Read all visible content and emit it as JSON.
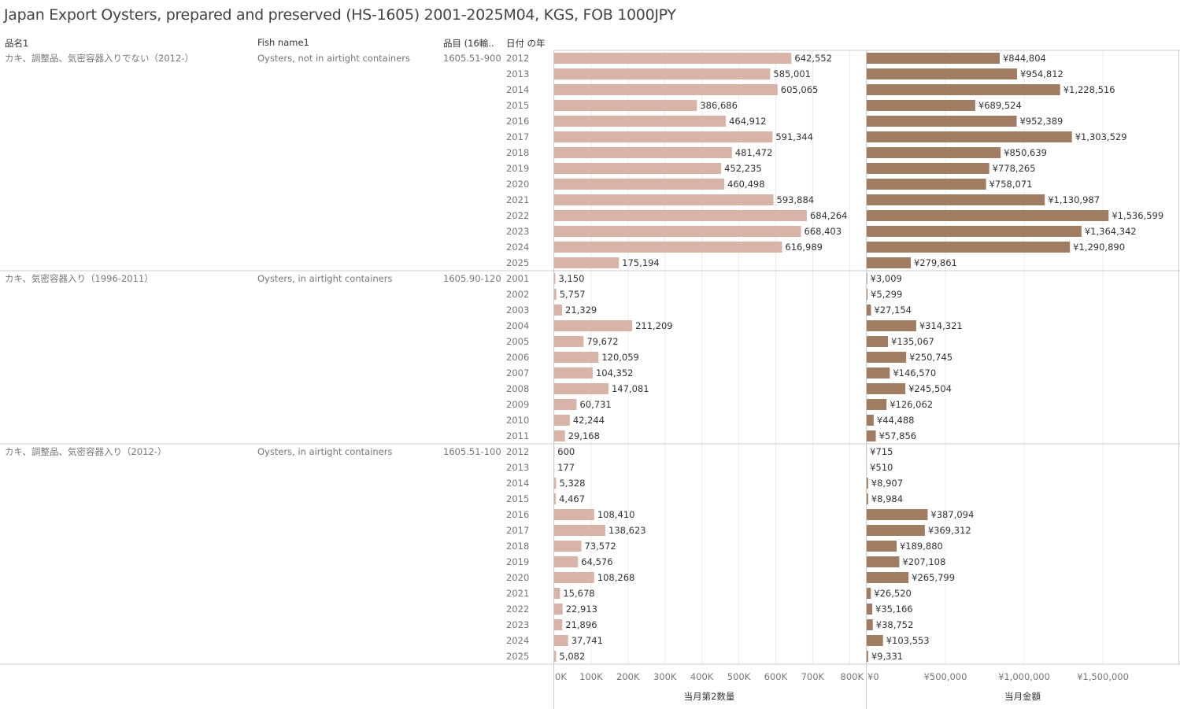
{
  "title": "Japan Export Oysters, prepared and preserved (HS-1605) 2001-2025M04, KGS, FOB 1000JPY",
  "headers": {
    "name": "品名1",
    "fish": "Fish name1",
    "code": "品目 (16輸..",
    "year": "日付 の年"
  },
  "colors": {
    "qty_bar": "#d8b4a8",
    "value_bar": "#a27b63",
    "grid": "#ececec",
    "divider": "#cccccc"
  },
  "axis": {
    "qty_title": "当月第2数量",
    "value_title": "当月金額",
    "qty_ticks": [
      "0K",
      "100K",
      "200K",
      "300K",
      "400K",
      "500K",
      "600K",
      "700K",
      "800K"
    ],
    "value_ticks": [
      "¥0",
      "¥500,000",
      "¥1,000,000",
      "¥1,500,000"
    ]
  },
  "chart_data": {
    "type": "bar",
    "orientation": "horizontal",
    "measures": [
      "当月第2数量",
      "当月金額"
    ],
    "xlim_qty": [
      0,
      840000
    ],
    "xlim_value": [
      0,
      1980000
    ],
    "grid": true,
    "groups": [
      {
        "name": "カキ、調整品、気密容器入りでない（2012-）",
        "fish": "Oysters, not in airtight containers",
        "code": "1605.51-900",
        "rows": [
          {
            "year": "2012",
            "qty": 642552,
            "qty_label": "642,552",
            "value": 844804,
            "value_label": "¥844,804"
          },
          {
            "year": "2013",
            "qty": 585001,
            "qty_label": "585,001",
            "value": 954812,
            "value_label": "¥954,812"
          },
          {
            "year": "2014",
            "qty": 605065,
            "qty_label": "605,065",
            "value": 1228516,
            "value_label": "¥1,228,516"
          },
          {
            "year": "2015",
            "qty": 386686,
            "qty_label": "386,686",
            "value": 689524,
            "value_label": "¥689,524"
          },
          {
            "year": "2016",
            "qty": 464912,
            "qty_label": "464,912",
            "value": 952389,
            "value_label": "¥952,389"
          },
          {
            "year": "2017",
            "qty": 591344,
            "qty_label": "591,344",
            "value": 1303529,
            "value_label": "¥1,303,529"
          },
          {
            "year": "2018",
            "qty": 481472,
            "qty_label": "481,472",
            "value": 850639,
            "value_label": "¥850,639"
          },
          {
            "year": "2019",
            "qty": 452235,
            "qty_label": "452,235",
            "value": 778265,
            "value_label": "¥778,265"
          },
          {
            "year": "2020",
            "qty": 460498,
            "qty_label": "460,498",
            "value": 758071,
            "value_label": "¥758,071"
          },
          {
            "year": "2021",
            "qty": 593884,
            "qty_label": "593,884",
            "value": 1130987,
            "value_label": "¥1,130,987"
          },
          {
            "year": "2022",
            "qty": 684264,
            "qty_label": "684,264",
            "value": 1536599,
            "value_label": "¥1,536,599"
          },
          {
            "year": "2023",
            "qty": 668403,
            "qty_label": "668,403",
            "value": 1364342,
            "value_label": "¥1,364,342"
          },
          {
            "year": "2024",
            "qty": 616989,
            "qty_label": "616,989",
            "value": 1290890,
            "value_label": "¥1,290,890"
          },
          {
            "year": "2025",
            "qty": 175194,
            "qty_label": "175,194",
            "value": 279861,
            "value_label": "¥279,861"
          }
        ]
      },
      {
        "name": "カキ、気密容器入り（1996-2011）",
        "fish": "Oysters, in airtight containers",
        "code": "1605.90-120",
        "rows": [
          {
            "year": "2001",
            "qty": 3150,
            "qty_label": "3,150",
            "value": 3009,
            "value_label": "¥3,009"
          },
          {
            "year": "2002",
            "qty": 5757,
            "qty_label": "5,757",
            "value": 5299,
            "value_label": "¥5,299"
          },
          {
            "year": "2003",
            "qty": 21329,
            "qty_label": "21,329",
            "value": 27154,
            "value_label": "¥27,154"
          },
          {
            "year": "2004",
            "qty": 211209,
            "qty_label": "211,209",
            "value": 314321,
            "value_label": "¥314,321"
          },
          {
            "year": "2005",
            "qty": 79672,
            "qty_label": "79,672",
            "value": 135067,
            "value_label": "¥135,067"
          },
          {
            "year": "2006",
            "qty": 120059,
            "qty_label": "120,059",
            "value": 250745,
            "value_label": "¥250,745"
          },
          {
            "year": "2007",
            "qty": 104352,
            "qty_label": "104,352",
            "value": 146570,
            "value_label": "¥146,570"
          },
          {
            "year": "2008",
            "qty": 147081,
            "qty_label": "147,081",
            "value": 245504,
            "value_label": "¥245,504"
          },
          {
            "year": "2009",
            "qty": 60731,
            "qty_label": "60,731",
            "value": 126062,
            "value_label": "¥126,062"
          },
          {
            "year": "2010",
            "qty": 42244,
            "qty_label": "42,244",
            "value": 44488,
            "value_label": "¥44,488"
          },
          {
            "year": "2011",
            "qty": 29168,
            "qty_label": "29,168",
            "value": 57856,
            "value_label": "¥57,856"
          }
        ]
      },
      {
        "name": "カキ、調整品、気密容器入り（2012-）",
        "fish": "Oysters, in airtight containers",
        "code": "1605.51-100",
        "rows": [
          {
            "year": "2012",
            "qty": 600,
            "qty_label": "600",
            "value": 715,
            "value_label": "¥715"
          },
          {
            "year": "2013",
            "qty": 177,
            "qty_label": "177",
            "value": 510,
            "value_label": "¥510"
          },
          {
            "year": "2014",
            "qty": 5328,
            "qty_label": "5,328",
            "value": 8907,
            "value_label": "¥8,907"
          },
          {
            "year": "2015",
            "qty": 4467,
            "qty_label": "4,467",
            "value": 8984,
            "value_label": "¥8,984"
          },
          {
            "year": "2016",
            "qty": 108410,
            "qty_label": "108,410",
            "value": 387094,
            "value_label": "¥387,094"
          },
          {
            "year": "2017",
            "qty": 138623,
            "qty_label": "138,623",
            "value": 369312,
            "value_label": "¥369,312"
          },
          {
            "year": "2018",
            "qty": 73572,
            "qty_label": "73,572",
            "value": 189880,
            "value_label": "¥189,880"
          },
          {
            "year": "2019",
            "qty": 64576,
            "qty_label": "64,576",
            "value": 207108,
            "value_label": "¥207,108"
          },
          {
            "year": "2020",
            "qty": 108268,
            "qty_label": "108,268",
            "value": 265799,
            "value_label": "¥265,799"
          },
          {
            "year": "2021",
            "qty": 15678,
            "qty_label": "15,678",
            "value": 26520,
            "value_label": "¥26,520"
          },
          {
            "year": "2022",
            "qty": 22913,
            "qty_label": "22,913",
            "value": 35166,
            "value_label": "¥35,166"
          },
          {
            "year": "2023",
            "qty": 21896,
            "qty_label": "21,896",
            "value": 38752,
            "value_label": "¥38,752"
          },
          {
            "year": "2024",
            "qty": 37741,
            "qty_label": "37,741",
            "value": 103553,
            "value_label": "¥103,553"
          },
          {
            "year": "2025",
            "qty": 5082,
            "qty_label": "5,082",
            "value": 9331,
            "value_label": "¥9,331"
          }
        ]
      }
    ]
  }
}
